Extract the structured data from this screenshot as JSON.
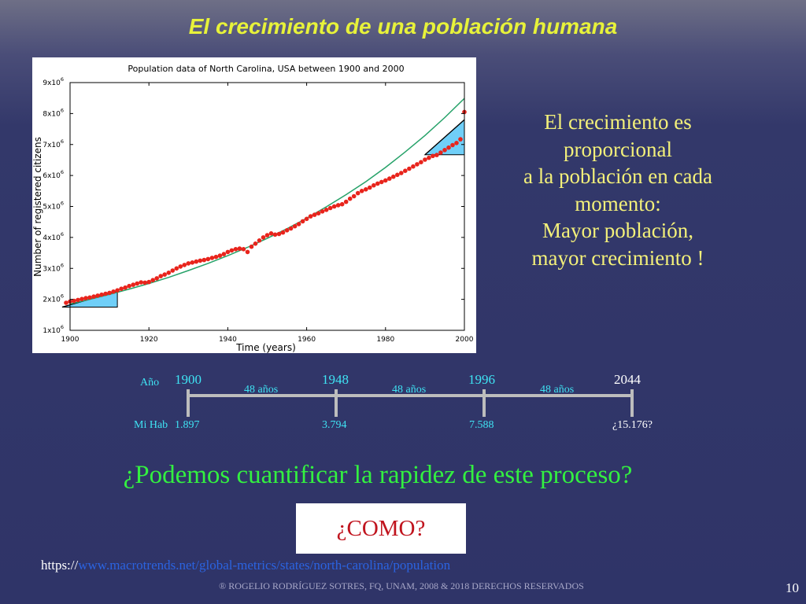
{
  "slide": {
    "title": "El crecimiento de una población humana",
    "side_text": [
      "El crecimiento es",
      "proporcional",
      "a la población en cada",
      "momento:",
      "Mayor población,",
      "mayor crecimiento !"
    ],
    "question": "¿Podemos cuantificar la rapidez de este proceso?",
    "como": "¿COMO?",
    "url_prefix": "https://",
    "url_link": "www.macrotrends.net/global-metrics/states/north-carolina/population",
    "footer": "® ROGELIO RODRÍGUEZ SOTRES, FQ, UNAM, 2008 & 2018 DERECHOS RESERVADOS",
    "page_number": "10"
  },
  "timeline": {
    "year_label": "Año",
    "pop_label": "Mi Hab",
    "years": [
      "1900",
      "1948",
      "1996",
      "2044"
    ],
    "populations": [
      "1.897",
      "3.794",
      "7.588",
      "¿15.176?"
    ],
    "spans": [
      "48 años",
      "48 años",
      "48 años"
    ],
    "colors": {
      "known": "#3fe3f3",
      "future": "#ffffff",
      "line": "#bdbdbd"
    }
  },
  "chart_data": {
    "type": "scatter",
    "title": "Population data of North Carolina, USA between 1900 and 2000",
    "xlabel": "Time (years)",
    "ylabel": "Number of registered citizens",
    "xlim": [
      1900,
      2000
    ],
    "ylim": [
      1000000,
      9000000
    ],
    "x_ticks": [
      "1900",
      "1920",
      "1940",
      "1960",
      "1980",
      "2000"
    ],
    "y_ticks": [
      "1x10",
      "2x10",
      "3x10",
      "4x10",
      "5x10",
      "6x10",
      "7x10",
      "8x10",
      "9x10"
    ],
    "y_tick_exponent": "6",
    "series": [
      {
        "kind": "points",
        "color": "#e8241c",
        "x": [
          1899,
          1900,
          1901,
          1902,
          1903,
          1904,
          1905,
          1906,
          1907,
          1908,
          1909,
          1910,
          1911,
          1912,
          1913,
          1914,
          1915,
          1916,
          1917,
          1918,
          1919,
          1920,
          1921,
          1922,
          1923,
          1924,
          1925,
          1926,
          1927,
          1928,
          1929,
          1930,
          1931,
          1932,
          1933,
          1934,
          1935,
          1936,
          1937,
          1938,
          1939,
          1940,
          1941,
          1942,
          1943,
          1944,
          1945,
          1946,
          1947,
          1948,
          1949,
          1950,
          1951,
          1952,
          1953,
          1954,
          1955,
          1956,
          1957,
          1958,
          1959,
          1960,
          1961,
          1962,
          1963,
          1964,
          1965,
          1966,
          1967,
          1968,
          1969,
          1970,
          1971,
          1972,
          1973,
          1974,
          1975,
          1976,
          1977,
          1978,
          1979,
          1980,
          1981,
          1982,
          1983,
          1984,
          1985,
          1986,
          1987,
          1988,
          1989,
          1990,
          1991,
          1992,
          1993,
          1994,
          1995,
          1996,
          1997,
          1998,
          1999,
          2000
        ],
        "y": [
          1.89,
          1.93,
          1.95,
          1.98,
          2.01,
          2.04,
          2.06,
          2.09,
          2.12,
          2.15,
          2.18,
          2.21,
          2.25,
          2.29,
          2.34,
          2.38,
          2.43,
          2.47,
          2.51,
          2.55,
          2.54,
          2.56,
          2.62,
          2.68,
          2.75,
          2.8,
          2.86,
          2.93,
          3.0,
          3.06,
          3.11,
          3.16,
          3.19,
          3.22,
          3.25,
          3.27,
          3.3,
          3.34,
          3.37,
          3.41,
          3.46,
          3.53,
          3.58,
          3.62,
          3.64,
          3.62,
          3.53,
          3.7,
          3.8,
          3.9,
          4.0,
          4.07,
          4.13,
          4.09,
          4.11,
          4.16,
          4.23,
          4.29,
          4.36,
          4.43,
          4.52,
          4.6,
          4.68,
          4.73,
          4.78,
          4.84,
          4.89,
          4.95,
          5.0,
          5.04,
          5.07,
          5.15,
          5.25,
          5.33,
          5.43,
          5.5,
          5.55,
          5.61,
          5.68,
          5.74,
          5.79,
          5.84,
          5.9,
          5.96,
          6.02,
          6.08,
          6.15,
          6.22,
          6.29,
          6.36,
          6.43,
          6.51,
          6.57,
          6.63,
          6.66,
          6.74,
          6.82,
          6.9,
          6.98,
          7.05,
          7.17,
          8.05
        ]
      },
      {
        "kind": "fit",
        "color": "#26a269",
        "x": [
          1900,
          1905,
          1910,
          1915,
          1920,
          1925,
          1930,
          1935,
          1940,
          1945,
          1950,
          1955,
          1960,
          1965,
          1970,
          1975,
          1980,
          1985,
          1990,
          1995,
          2000
        ],
        "y": [
          1.85,
          2.0,
          2.16,
          2.33,
          2.51,
          2.71,
          2.93,
          3.16,
          3.41,
          3.68,
          3.97,
          4.28,
          4.62,
          4.99,
          5.38,
          5.8,
          6.26,
          6.76,
          7.29,
          7.87,
          8.49
        ]
      }
    ],
    "triangles": [
      {
        "x": [
          1898,
          1912
        ],
        "y": [
          1.75,
          2.26
        ],
        "color": "#70cff8"
      },
      {
        "x": [
          1990,
          2000
        ],
        "y": [
          6.67,
          7.8
        ],
        "color": "#70cff8"
      }
    ]
  }
}
